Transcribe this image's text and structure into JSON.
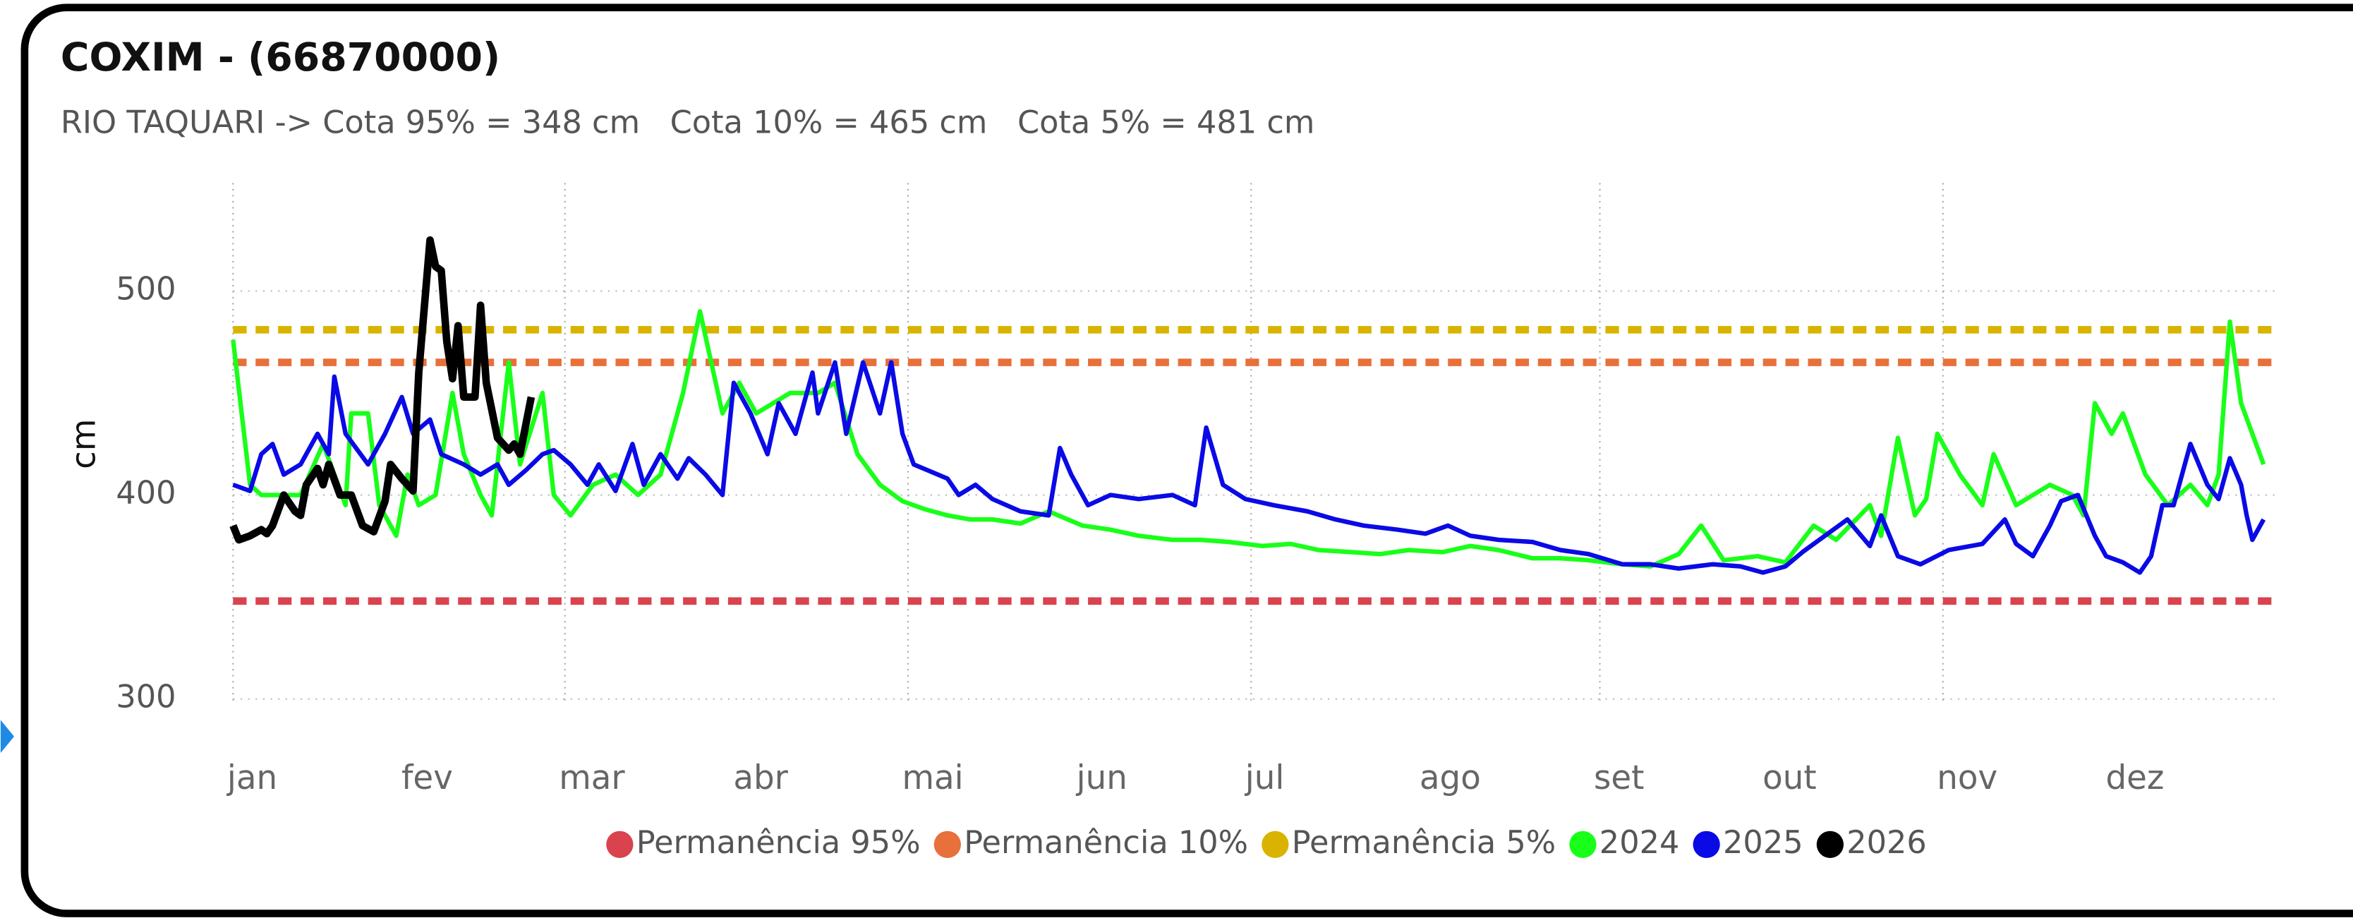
{
  "chart_data": {
    "type": "line",
    "title": "COXIM - (66870000)",
    "subtitle": "RIO TAQUARI -> Cota 95% = 348 cm   Cota 10% = 465 cm   Cota 5% = 481 cm",
    "y_label": "cm",
    "xlim": [
      1,
      365
    ],
    "xticks": [
      {
        "value": 1,
        "label": "jan"
      },
      {
        "value": 32,
        "label": "fev"
      },
      {
        "value": 60,
        "label": "mar"
      },
      {
        "value": 91,
        "label": "abr"
      },
      {
        "value": 121,
        "label": "mai"
      },
      {
        "value": 152,
        "label": "jun"
      },
      {
        "value": 182,
        "label": "jul"
      },
      {
        "value": 213,
        "label": "ago"
      },
      {
        "value": 244,
        "label": "set"
      },
      {
        "value": 274,
        "label": "out"
      },
      {
        "value": 305,
        "label": "nov"
      },
      {
        "value": 335,
        "label": "dez"
      }
    ],
    "ylim": [
      300,
      550
    ],
    "yticks": [
      300,
      400,
      500
    ],
    "grid": true,
    "legend": "bottom",
    "series": [
      {
        "name": "Permanência 95%",
        "color": "#d9434e",
        "dashed": true,
        "x": [
          1,
          365
        ],
        "values": [
          348,
          348
        ]
      },
      {
        "name": "Permanência 10%",
        "color": "#e8703a",
        "dashed": true,
        "x": [
          1,
          365
        ],
        "values": [
          465,
          465
        ]
      },
      {
        "name": "Permanência 5%",
        "color": "#d9b300",
        "dashed": true,
        "x": [
          1,
          365
        ],
        "values": [
          481,
          481
        ]
      },
      {
        "name": "2024",
        "color": "#19ff19",
        "x": [
          1,
          4,
          6,
          13,
          17,
          21,
          22,
          25,
          27,
          30,
          32,
          34,
          37,
          40,
          42,
          45,
          47,
          50,
          52,
          56,
          58,
          61,
          65,
          69,
          73,
          77,
          81,
          84,
          88,
          91,
          94,
          100,
          105,
          108,
          112,
          116,
          120,
          124,
          128,
          132,
          136,
          141,
          146,
          152,
          157,
          162,
          168,
          173,
          178,
          184,
          189,
          194,
          200,
          205,
          210,
          216,
          221,
          226,
          232,
          237,
          242,
          248,
          253,
          258,
          262,
          266,
          272,
          277,
          282,
          286,
          292,
          294,
          297,
          300,
          302,
          304,
          308,
          312,
          314,
          318,
          324,
          328,
          330,
          332,
          335,
          337,
          341,
          345,
          349,
          352,
          354,
          356,
          358,
          360,
          362
        ],
        "values": [
          476,
          405,
          400,
          400,
          425,
          395,
          440,
          440,
          395,
          380,
          410,
          395,
          400,
          450,
          420,
          400,
          390,
          465,
          415,
          450,
          400,
          390,
          405,
          410,
          400,
          410,
          450,
          490,
          440,
          455,
          440,
          450,
          450,
          455,
          420,
          405,
          397,
          393,
          390,
          388,
          388,
          386,
          392,
          385,
          383,
          380,
          378,
          378,
          377,
          375,
          376,
          373,
          372,
          371,
          373,
          372,
          375,
          373,
          369,
          369,
          368,
          366,
          365,
          371,
          385,
          368,
          370,
          367,
          385,
          378,
          395,
          380,
          428,
          390,
          398,
          430,
          410,
          395,
          420,
          395,
          405,
          400,
          390,
          445,
          430,
          440,
          410,
          395,
          405,
          395,
          410,
          485,
          445,
          430,
          415
        ]
      },
      {
        "name": "2025",
        "color": "#0a0ae6",
        "x": [
          1,
          4,
          6,
          8,
          10,
          13,
          16,
          18,
          19,
          21,
          25,
          28,
          31,
          33,
          36,
          38,
          42,
          45,
          48,
          50,
          53,
          56,
          58,
          61,
          64,
          66,
          69,
          72,
          74,
          77,
          80,
          82,
          85,
          88,
          90,
          93,
          96,
          98,
          101,
          104,
          105,
          108,
          110,
          113,
          116,
          118,
          120,
          122,
          128,
          130,
          133,
          136,
          141,
          146,
          148,
          150,
          153,
          157,
          162,
          168,
          172,
          174,
          177,
          181,
          186,
          192,
          197,
          202,
          208,
          213,
          217,
          221,
          226,
          232,
          237,
          242,
          248,
          253,
          258,
          264,
          269,
          273,
          277,
          280,
          284,
          288,
          292,
          294,
          297,
          301,
          306,
          312,
          316,
          318,
          321,
          324,
          326,
          329,
          332,
          334,
          337,
          340,
          342,
          344,
          346,
          349,
          352,
          354,
          356,
          358,
          359,
          360,
          362
        ],
        "values": [
          405,
          402,
          420,
          425,
          410,
          415,
          430,
          420,
          458,
          430,
          415,
          430,
          448,
          430,
          437,
          420,
          415,
          410,
          415,
          405,
          412,
          420,
          422,
          415,
          405,
          415,
          402,
          425,
          405,
          420,
          408,
          418,
          410,
          400,
          455,
          440,
          420,
          445,
          430,
          460,
          440,
          465,
          430,
          465,
          440,
          465,
          430,
          415,
          408,
          400,
          405,
          398,
          392,
          390,
          423,
          410,
          395,
          400,
          398,
          400,
          395,
          433,
          405,
          398,
          395,
          392,
          388,
          385,
          383,
          381,
          385,
          380,
          378,
          377,
          373,
          371,
          366,
          366,
          364,
          366,
          365,
          362,
          365,
          372,
          380,
          388,
          375,
          390,
          370,
          366,
          373,
          376,
          388,
          376,
          370,
          385,
          397,
          400,
          380,
          370,
          367,
          362,
          370,
          395,
          395,
          425,
          405,
          398,
          418,
          405,
          390,
          378,
          388
        ]
      },
      {
        "name": "2026",
        "color": "#000000",
        "width": 5,
        "x": [
          1,
          2,
          4,
          6,
          7,
          8,
          10,
          12,
          13,
          14,
          16,
          17,
          18,
          20,
          22,
          24,
          26,
          28,
          29,
          31,
          33,
          34,
          36,
          37,
          38,
          39,
          40,
          41,
          42,
          44,
          45,
          46,
          48,
          50,
          51,
          52,
          54
        ],
        "values": [
          385,
          378,
          380,
          383,
          381,
          385,
          400,
          392,
          390,
          405,
          413,
          405,
          415,
          400,
          400,
          385,
          382,
          397,
          415,
          408,
          402,
          460,
          525,
          512,
          510,
          475,
          457,
          483,
          448,
          448,
          493,
          455,
          428,
          422,
          425,
          420,
          448
        ]
      }
    ]
  }
}
